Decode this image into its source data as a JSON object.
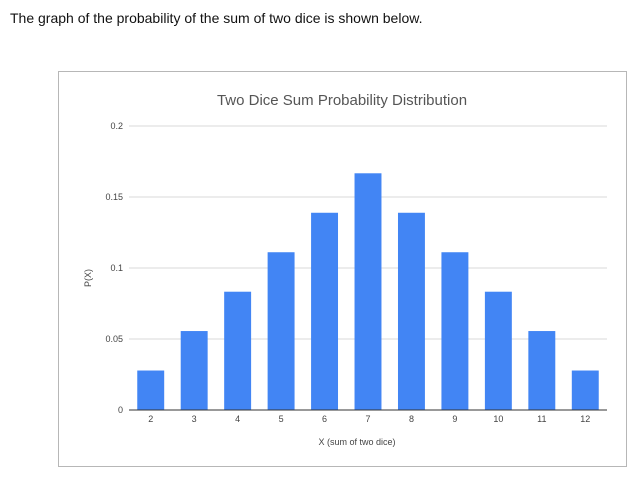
{
  "intro_text": "The graph of the probability of the sum of two dice is shown below.",
  "colors": {
    "bar": "#4285f4",
    "grid": "#d9d9d9",
    "baseline": "#333333"
  },
  "chart_data": {
    "type": "bar",
    "title": "Two Dice Sum Probability Distribution",
    "xlabel": "X (sum of two dice)",
    "ylabel": "P(X)",
    "categories": [
      "2",
      "3",
      "4",
      "5",
      "6",
      "7",
      "8",
      "9",
      "10",
      "11",
      "12"
    ],
    "values": [
      0.0278,
      0.0556,
      0.0833,
      0.1111,
      0.1389,
      0.1667,
      0.1389,
      0.1111,
      0.0833,
      0.0556,
      0.0278
    ],
    "ylim": [
      0,
      0.2
    ],
    "yticks": [
      "0",
      "0.05",
      "0.1",
      "0.15",
      "0.2"
    ],
    "ytick_values": [
      0,
      0.05,
      0.1,
      0.15,
      0.2
    ],
    "grid": true,
    "legend": "none"
  }
}
